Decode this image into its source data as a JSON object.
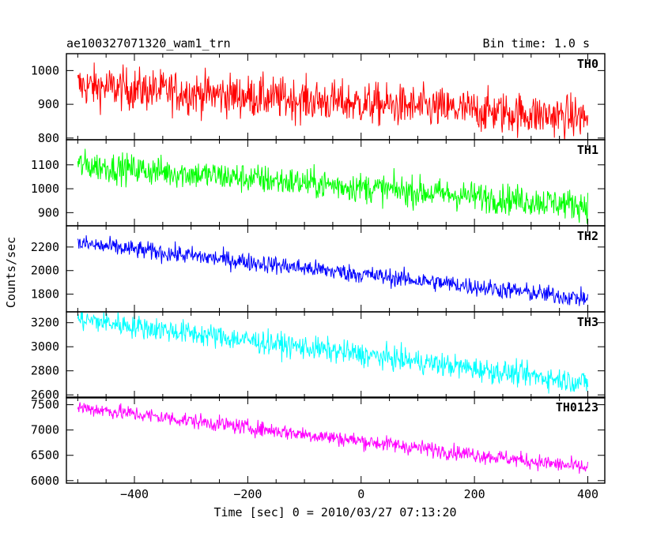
{
  "header": {
    "title": "ae100327071320_wam1_trn",
    "bin_time": "Bin time: 1.0 s"
  },
  "chart_data": {
    "type": "line",
    "title": "ae100327071320_wam1_trn",
    "subtitle": "Bin time: 1.0 s",
    "xlabel": "Time [sec] 0 = 2010/03/27 07:13:20",
    "ylabel": "Counts/sec",
    "xlim": [
      -520,
      430
    ],
    "x_range": [
      -500,
      400
    ],
    "x_ticks": [
      -400,
      -200,
      0,
      200,
      400
    ],
    "grid": false,
    "panels": [
      {
        "name": "TH0",
        "color": "#ff0000",
        "ylim": [
          795,
          1050
        ],
        "y_ticks": [
          800,
          900,
          1000
        ],
        "trend_start": 955,
        "trend_end": 860,
        "noise": 45
      },
      {
        "name": "TH1",
        "color": "#00ff00",
        "ylim": [
          845,
          1205
        ],
        "y_ticks": [
          900,
          1000,
          1100
        ],
        "trend_start": 1100,
        "trend_end": 930,
        "noise": 45
      },
      {
        "name": "TH2",
        "color": "#0000ff",
        "ylim": [
          1650,
          2380
        ],
        "y_ticks": [
          1800,
          2000,
          2200
        ],
        "trend_start": 2230,
        "trend_end": 1760,
        "noise": 55
      },
      {
        "name": "TH3",
        "color": "#00ffff",
        "ylim": [
          2575,
          3290
        ],
        "y_ticks": [
          2600,
          2800,
          3000,
          3200
        ],
        "trend_start": 3230,
        "trend_end": 2700,
        "noise": 70
      },
      {
        "name": "TH0123",
        "color": "#ff00ff",
        "ylim": [
          5950,
          7650
        ],
        "y_ticks": [
          6000,
          6500,
          7000,
          7500
        ],
        "trend_start": 7450,
        "trend_end": 6250,
        "noise": 110
      }
    ]
  }
}
